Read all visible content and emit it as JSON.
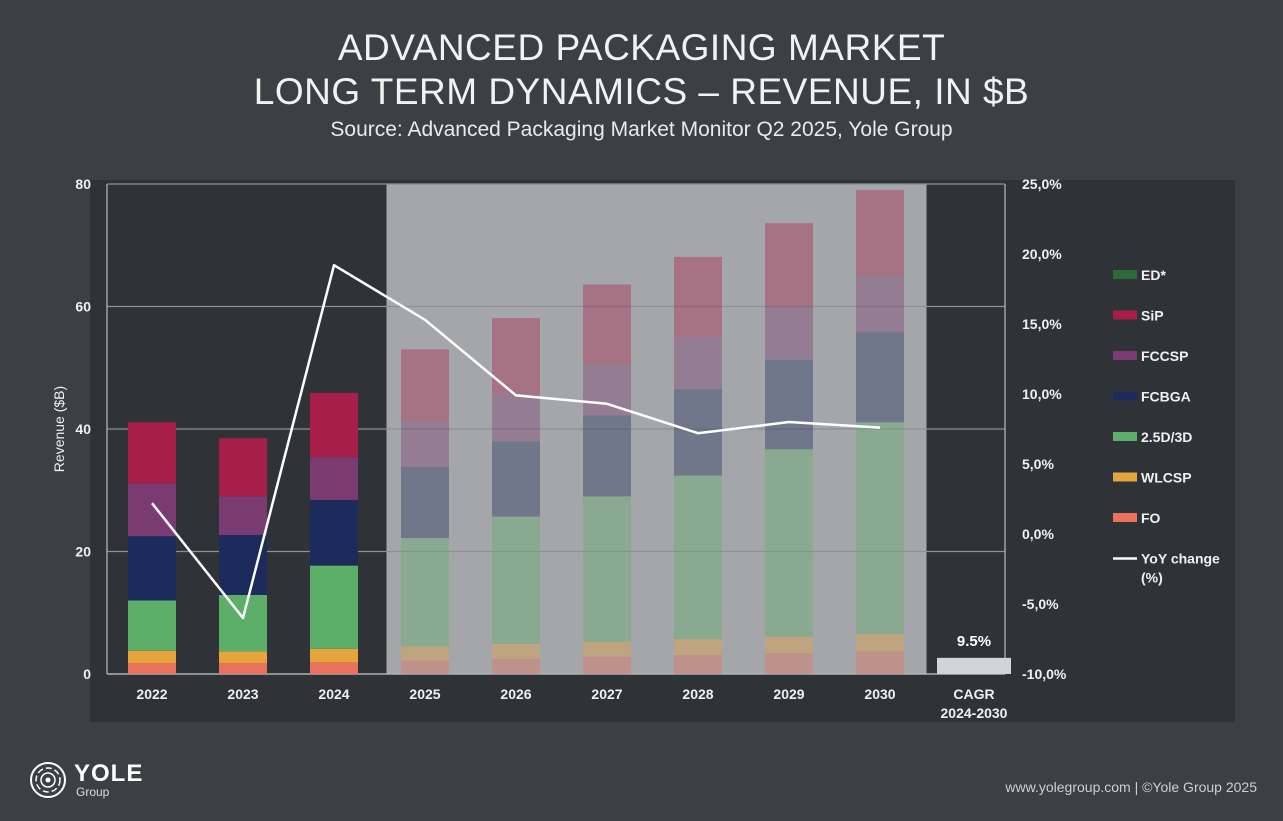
{
  "title_lines": [
    "ADVANCED PACKAGING MARKET",
    "LONG TERM DYNAMICS – REVENUE, IN $B"
  ],
  "subtitle": "Source: Advanced Packaging Market Monitor Q2 2025, Yole Group",
  "footer": "www.yolegroup.com | ©Yole Group 2025",
  "logo": {
    "name": "YOLE",
    "sub": "Group"
  },
  "chart_data": {
    "type": "bar",
    "stacked": true,
    "ylabel": "Revenue ($B)",
    "ylim": [
      0,
      80
    ],
    "y_ticks": [
      0,
      20,
      40,
      60,
      80
    ],
    "y2lim": [
      -10,
      25
    ],
    "y2_ticks": [
      "-10,0%",
      "-5,0%",
      "0,0%",
      "5,0%",
      "10,0%",
      "15,0%",
      "20,0%",
      "25,0%"
    ],
    "categories": [
      "2022",
      "2023",
      "2024",
      "2025",
      "2026",
      "2027",
      "2028",
      "2029",
      "2030"
    ],
    "forecast_categories": [
      "2025",
      "2026",
      "2027",
      "2028",
      "2029",
      "2030"
    ],
    "series": [
      {
        "name": "FO",
        "color": "#e8725c",
        "values": [
          1.8,
          1.8,
          1.9,
          2.2,
          2.5,
          2.8,
          3.1,
          3.4,
          3.7
        ]
      },
      {
        "name": "WLCSP",
        "color": "#e8a43c",
        "values": [
          2.0,
          1.9,
          2.2,
          2.3,
          2.4,
          2.5,
          2.6,
          2.7,
          2.8
        ]
      },
      {
        "name": "2.5D/3D",
        "color": "#5dae68",
        "values": [
          8.2,
          9.2,
          13.6,
          17.7,
          20.8,
          23.7,
          26.7,
          30.6,
          34.6
        ]
      },
      {
        "name": "FCBGA",
        "color": "#1c2a5c",
        "values": [
          10.5,
          9.8,
          10.7,
          11.6,
          12.3,
          13.2,
          14.1,
          14.6,
          14.8
        ]
      },
      {
        "name": "FCCSP",
        "color": "#7a3b72",
        "values": [
          8.6,
          6.3,
          7.0,
          7.5,
          7.8,
          8.4,
          8.5,
          8.7,
          9.1
        ]
      },
      {
        "name": "SiP",
        "color": "#a81e4a",
        "values": [
          10.0,
          9.5,
          10.5,
          11.7,
          12.3,
          13.0,
          13.1,
          13.6,
          14.0
        ]
      },
      {
        "name": "ED*",
        "color": "#2d6a3a",
        "values": [
          0,
          0,
          0,
          0,
          0,
          0,
          0,
          0,
          0
        ]
      }
    ],
    "line_series": {
      "name": "YoY change (%)",
      "values": [
        2.2,
        -6.0,
        19.2,
        15.3,
        9.9,
        9.3,
        7.2,
        8.0,
        7.6
      ]
    },
    "legend": [
      "ED*",
      "SiP",
      "FCCSP",
      "FCBGA",
      "2.5D/3D",
      "WLCSP",
      "FO",
      "YoY change (%)"
    ],
    "legend_lines": {
      "YoY change (%)": [
        "YoY change",
        "(%)"
      ]
    },
    "legend_position": "right",
    "cagr": {
      "label_lines": [
        "CAGR",
        "2024-2030"
      ],
      "value": 9.5,
      "value_label": "9.5%"
    }
  }
}
